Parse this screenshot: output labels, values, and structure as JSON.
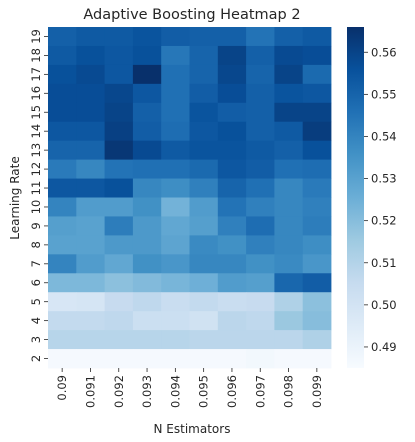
{
  "chart_data": {
    "type": "heatmap",
    "title": "Adaptive Boosting Heatmap 2",
    "xlabel": "N Estimators",
    "ylabel": "Learning Rate",
    "x_categories": [
      "0.09",
      "0.091",
      "0.092",
      "0.093",
      "0.094",
      "0.095",
      "0.096",
      "0.097",
      "0.098",
      "0.099"
    ],
    "y_categories": [
      "19",
      "18",
      "17",
      "16",
      "15",
      "14",
      "13",
      "12",
      "11",
      "10",
      "9",
      "8",
      "7",
      "6",
      "5",
      "4",
      "3",
      "2"
    ],
    "values": [
      [
        0.551,
        0.553,
        0.553,
        0.555,
        0.552,
        0.551,
        0.551,
        0.545,
        0.551,
        0.553
      ],
      [
        0.553,
        0.556,
        0.554,
        0.556,
        0.544,
        0.55,
        0.56,
        0.551,
        0.558,
        0.557
      ],
      [
        0.556,
        0.558,
        0.554,
        0.566,
        0.546,
        0.55,
        0.559,
        0.55,
        0.56,
        0.548
      ],
      [
        0.557,
        0.557,
        0.559,
        0.554,
        0.546,
        0.552,
        0.557,
        0.551,
        0.555,
        0.554
      ],
      [
        0.557,
        0.557,
        0.56,
        0.551,
        0.546,
        0.555,
        0.552,
        0.551,
        0.56,
        0.56
      ],
      [
        0.554,
        0.554,
        0.561,
        0.552,
        0.547,
        0.554,
        0.556,
        0.551,
        0.553,
        0.562
      ],
      [
        0.55,
        0.55,
        0.564,
        0.558,
        0.553,
        0.555,
        0.555,
        0.553,
        0.551,
        0.556
      ],
      [
        0.543,
        0.539,
        0.545,
        0.546,
        0.546,
        0.548,
        0.554,
        0.552,
        0.546,
        0.547
      ],
      [
        0.554,
        0.554,
        0.556,
        0.539,
        0.537,
        0.541,
        0.55,
        0.546,
        0.539,
        0.543
      ],
      [
        0.54,
        0.532,
        0.532,
        0.536,
        0.524,
        0.532,
        0.545,
        0.541,
        0.539,
        0.541
      ],
      [
        0.531,
        0.53,
        0.542,
        0.533,
        0.528,
        0.531,
        0.541,
        0.547,
        0.539,
        0.542
      ],
      [
        0.53,
        0.53,
        0.533,
        0.533,
        0.529,
        0.538,
        0.536,
        0.541,
        0.539,
        0.537
      ],
      [
        0.54,
        0.532,
        0.528,
        0.536,
        0.534,
        0.539,
        0.539,
        0.536,
        0.538,
        0.534
      ],
      [
        0.522,
        0.522,
        0.519,
        0.521,
        0.523,
        0.525,
        0.532,
        0.531,
        0.549,
        0.552
      ],
      [
        0.498,
        0.499,
        0.505,
        0.507,
        0.504,
        0.506,
        0.504,
        0.505,
        0.511,
        0.519
      ],
      [
        0.506,
        0.506,
        0.507,
        0.503,
        0.503,
        0.501,
        0.508,
        0.507,
        0.516,
        0.52
      ],
      [
        0.509,
        0.509,
        0.509,
        0.509,
        0.509,
        0.508,
        0.508,
        0.508,
        0.508,
        0.511
      ],
      [
        0.486,
        0.486,
        0.486,
        0.486,
        0.486,
        0.486,
        0.486,
        0.487,
        0.486,
        0.486
      ]
    ],
    "colormap": "Blues",
    "vmin": 0.485,
    "vmax": 0.566,
    "colorbar_ticks": [
      0.49,
      0.5,
      0.51,
      0.52,
      0.53,
      0.54,
      0.55,
      0.56
    ],
    "colorbar_tick_labels": [
      "0.49",
      "0.50",
      "0.51",
      "0.52",
      "0.53",
      "0.54",
      "0.55",
      "0.56"
    ]
  }
}
